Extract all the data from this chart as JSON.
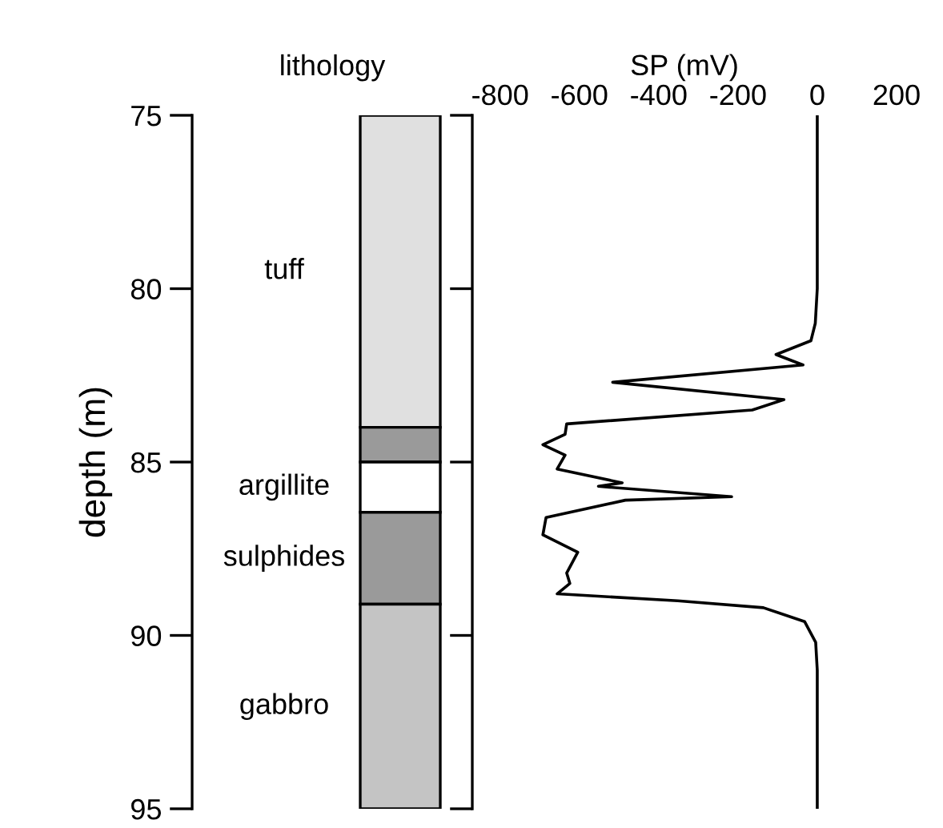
{
  "chart_data": [
    {
      "type": "bar",
      "title": "lithology",
      "ylabel": "depth (m)",
      "categories": [
        null
      ],
      "ylim": [
        95,
        75
      ],
      "yticks": [
        75,
        80,
        85,
        90,
        95
      ],
      "tick_labels": "y",
      "legend": false,
      "series": [
        {
          "name": "tuff",
          "color": "#e0e0e0",
          "base": [
            75
          ],
          "values": [
            9
          ]
        },
        {
          "color": "#9a9a9a",
          "base": [
            84
          ],
          "values": [
            1
          ]
        },
        {
          "name": "argillite",
          "color": "#ffffff",
          "base": [
            85
          ],
          "values": [
            1.45
          ]
        },
        {
          "name": "sulphides",
          "color": "#9a9a9a",
          "base": [
            86.45
          ],
          "values": [
            2.65
          ]
        },
        {
          "name": "gabbro",
          "color": "#c4c4c4",
          "base": [
            89.1
          ],
          "values": [
            5.9
          ]
        }
      ]
    },
    {
      "type": "line",
      "xlabel": "SP (mV)",
      "xlim": [
        -870,
        200
      ],
      "xticks": [
        -800,
        -600,
        -400,
        -200,
        0,
        200
      ],
      "ylim": [
        95,
        75
      ],
      "yticks": [
        75,
        80,
        85,
        90,
        95
      ],
      "tick_labels": "x",
      "legend": false,
      "series": [
        {
          "color": "#000000",
          "x": [
            0,
            0,
            -5,
            -16,
            -104,
            -36,
            -516,
            -84,
            -164,
            -632,
            -636,
            -692,
            -636,
            -656,
            -492,
            -552,
            -216,
            -484,
            -684,
            -692,
            -604,
            -632,
            -624,
            -656,
            -352,
            -136,
            -32,
            -4,
            0,
            0
          ],
          "values": [
            75,
            80,
            81,
            81.5,
            81.9,
            82.2,
            82.7,
            83.2,
            83.5,
            83.9,
            84.2,
            84.5,
            84.8,
            85.2,
            85.6,
            85.7,
            86.0,
            86.1,
            86.6,
            87.1,
            87.6,
            88.2,
            88.5,
            88.8,
            89.0,
            89.2,
            89.6,
            90.2,
            91,
            95
          ]
        }
      ]
    }
  ]
}
